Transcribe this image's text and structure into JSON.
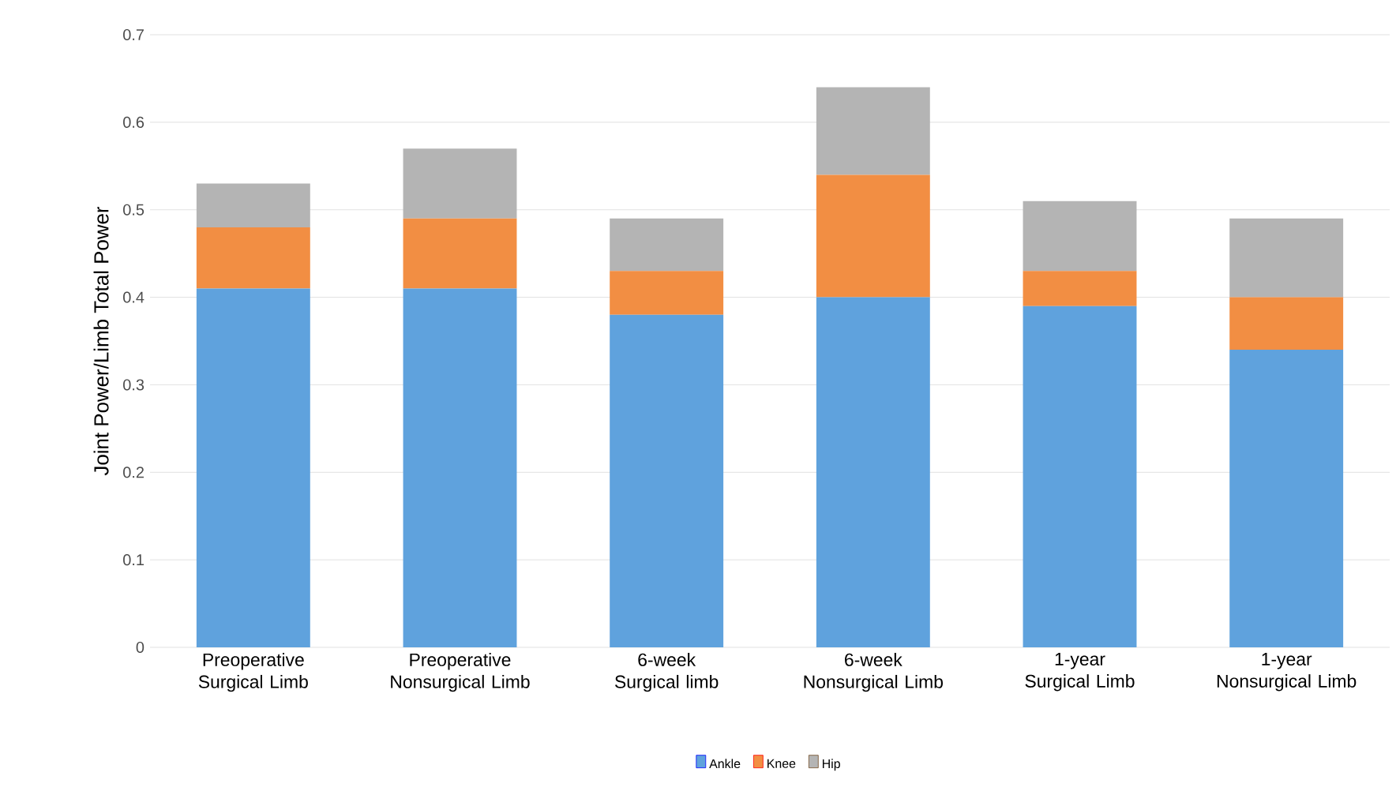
{
  "chart_data": {
    "type": "bar",
    "stacked": true,
    "ylabel": "Joint Power/Limb Total Power",
    "categories": [
      "Preoperative Surgical Limb",
      "Preoperative Nonsurgical Limb",
      "6-week Surgical limb",
      "6-week Nonsurgical Limb",
      "1-year Surgical Limb",
      "1-year Nonsurgical Limb"
    ],
    "series": [
      {
        "name": "Ankle",
        "color": "#5fa2dd",
        "values": [
          0.41,
          0.41,
          0.38,
          0.4,
          0.39,
          0.34
        ]
      },
      {
        "name": "Knee",
        "color": "#f28e43",
        "values": [
          0.07,
          0.08,
          0.05,
          0.14,
          0.04,
          0.06
        ]
      },
      {
        "name": "Hip",
        "color": "#b4b4b4",
        "values": [
          0.05,
          0.08,
          0.06,
          0.1,
          0.08,
          0.09
        ]
      }
    ],
    "ylim": [
      0,
      0.7
    ],
    "yticks": [
      0,
      0.1,
      0.2,
      0.3,
      0.4,
      0.5,
      0.6,
      0.7
    ],
    "grid": "y",
    "legend": "bottom"
  }
}
